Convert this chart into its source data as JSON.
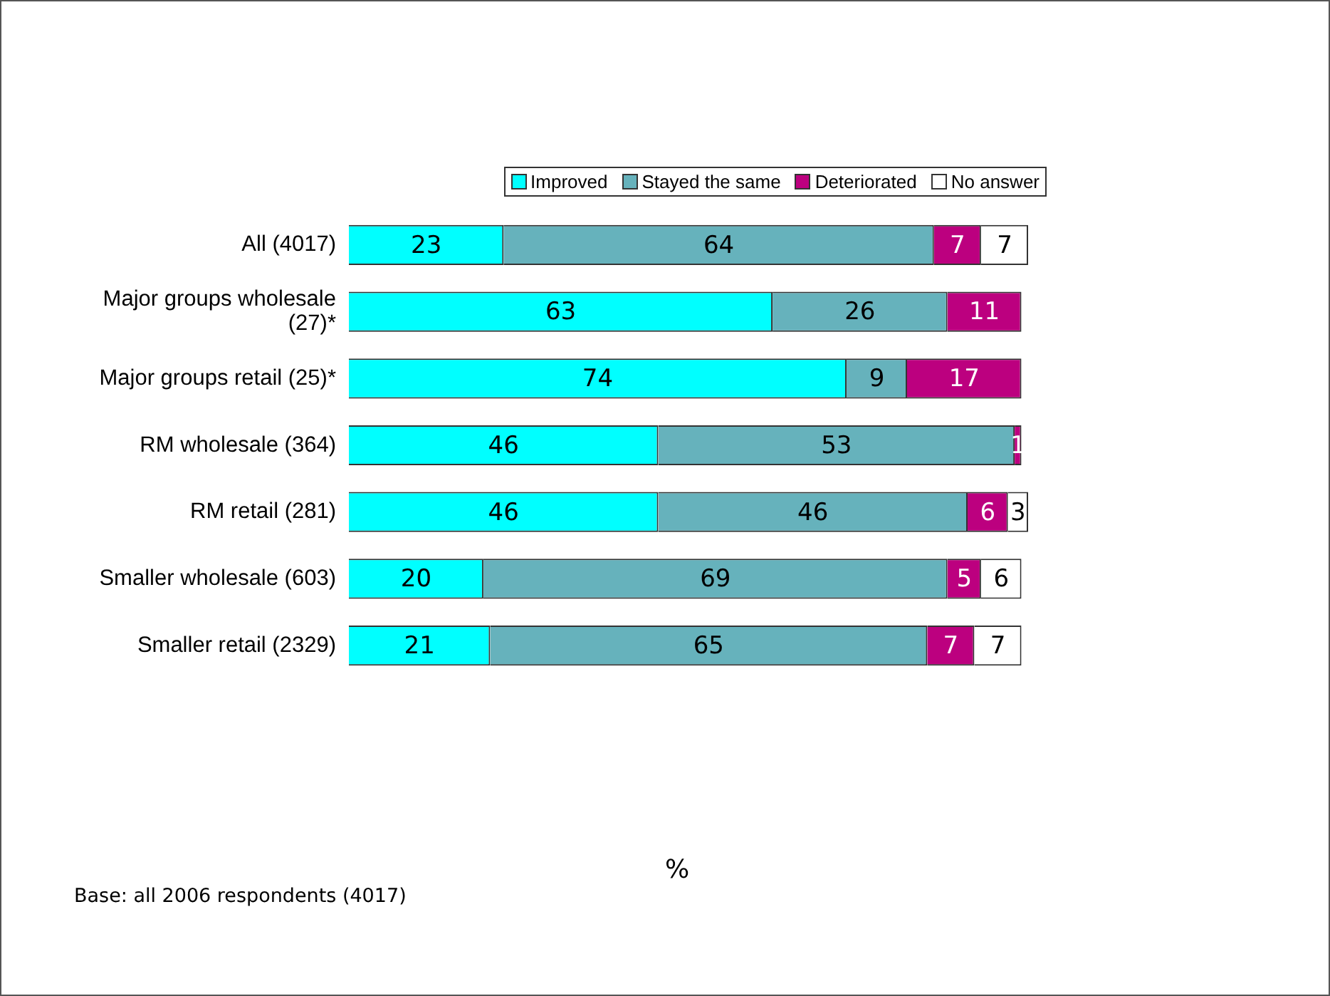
{
  "chart_data": {
    "type": "bar",
    "orientation": "horizontal",
    "stacked": true,
    "categories": [
      "All (4017)",
      "Major groups wholesale (27)*",
      "Major groups retail (25)*",
      "RM wholesale (364)",
      "RM retail (281)",
      "Smaller wholesale (603)",
      "Smaller retail (2329)"
    ],
    "series": [
      {
        "name": "Improved",
        "color": "#00ffff",
        "values": [
          23,
          63,
          74,
          46,
          46,
          20,
          21
        ]
      },
      {
        "name": "Stayed the same",
        "color": "#66b2bc",
        "values": [
          64,
          26,
          9,
          53,
          46,
          69,
          65
        ]
      },
      {
        "name": "Deteriorated",
        "color": "#bc007f",
        "values": [
          7,
          11,
          17,
          1,
          6,
          5,
          7
        ]
      },
      {
        "name": "No answer",
        "color": "#ffffff",
        "values": [
          7,
          null,
          null,
          null,
          3,
          6,
          7
        ]
      }
    ],
    "annotations": [
      "%",
      "Base: all 2006 respondents (4017)"
    ],
    "data_labels": true,
    "legend": "top right",
    "tick_labels": "y"
  }
}
